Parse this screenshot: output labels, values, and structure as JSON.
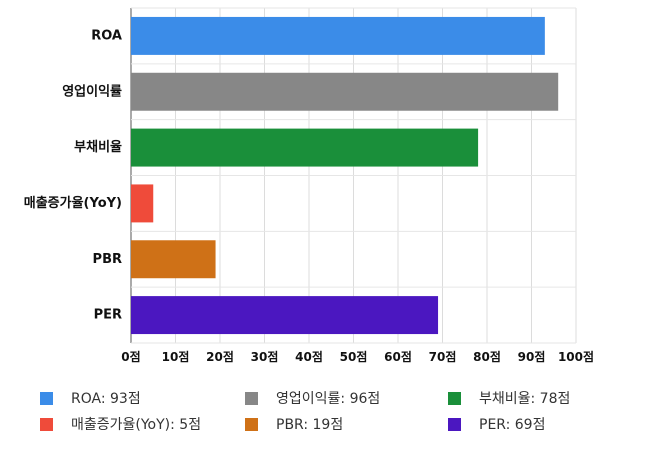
{
  "chart_data": {
    "type": "bar",
    "orientation": "horizontal",
    "categories": [
      "ROA",
      "영업이익률",
      "부채비율",
      "매출증가율(YoY)",
      "PBR",
      "PER"
    ],
    "values": [
      93,
      96,
      78,
      5,
      19,
      69
    ],
    "colors": [
      "#3b8ce8",
      "#878787",
      "#1a8f3a",
      "#ef4b3a",
      "#cf7117",
      "#4b17c0"
    ],
    "xlim": [
      0,
      100
    ],
    "x_ticks": [
      0,
      10,
      20,
      30,
      40,
      50,
      60,
      70,
      80,
      90,
      100
    ],
    "tick_suffix": "점",
    "grid": true,
    "legend_position": "bottom",
    "legend": [
      {
        "text": "ROA: 93점",
        "color": "#3b8ce8"
      },
      {
        "text": "영업이익률: 96점",
        "color": "#878787"
      },
      {
        "text": "부채비율: 78점",
        "color": "#1a8f3a"
      },
      {
        "text": "매출증가율(YoY): 5점",
        "color": "#ef4b3a"
      },
      {
        "text": "PBR: 19점",
        "color": "#cf7117"
      },
      {
        "text": "PER: 69점",
        "color": "#4b17c0"
      }
    ]
  }
}
